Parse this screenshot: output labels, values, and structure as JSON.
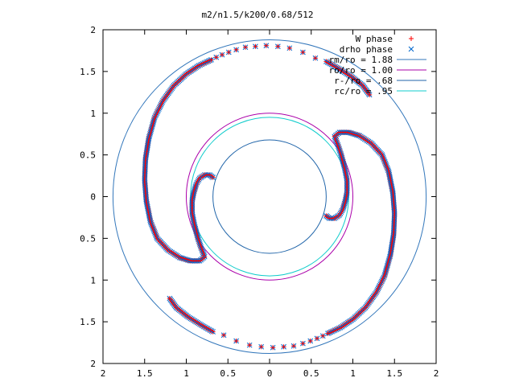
{
  "chart_data": {
    "type": "scatter",
    "title": "m2/n1.5/k200/0.68/512",
    "xlim": [
      -2,
      2
    ],
    "ylim": [
      -2,
      2
    ],
    "x_ticks": [
      -2,
      -1.5,
      -1,
      -0.5,
      0,
      0.5,
      1,
      1.5,
      2
    ],
    "y_ticks": [
      -2,
      -1.5,
      -1,
      -0.5,
      0,
      0.5,
      1,
      1.5,
      2
    ],
    "x_tick_labels": [
      "2",
      "1.5",
      "1",
      "0.5",
      "0",
      "0.5",
      "1",
      "1.5",
      "2"
    ],
    "y_tick_labels": [
      "2",
      "1.5",
      "1",
      "0.5",
      "0",
      "0.5",
      "1",
      "1.5",
      "2"
    ],
    "grid": false,
    "legend_position": "top-right",
    "legend": [
      {
        "label": "W phase",
        "kind": "plus",
        "color": "#ff0000"
      },
      {
        "label": "drho phase",
        "kind": "cross",
        "color": "#0066cc"
      },
      {
        "label": "rm/ro = 1.88",
        "kind": "line",
        "color": "#3377bb"
      },
      {
        "label": "ro/ro = 1.00",
        "kind": "line",
        "color": "#aa00aa"
      },
      {
        "label": "r-/ro = .68",
        "kind": "line",
        "color": "#2266aa"
      },
      {
        "label": "rc/ro = .95",
        "kind": "line",
        "color": "#11cccc"
      }
    ],
    "circles": [
      {
        "name": "rm/ro = 1.88",
        "radius": 1.88,
        "color": "#3377bb"
      },
      {
        "name": "ro/ro = 1.00",
        "radius": 1.0,
        "color": "#aa00aa"
      },
      {
        "name": "r-/ro = .68",
        "radius": 0.68,
        "color": "#2266aa"
      },
      {
        "name": "rc/ro = .95",
        "radius": 0.95,
        "color": "#11cccc"
      }
    ],
    "phase_series": [
      {
        "name": "W phase",
        "marker": "plus",
        "color": "#ff0000",
        "arms": [
          {
            "dense": true,
            "points": [
              [
                -0.68,
                0.23
              ],
              [
                -0.72,
                0.26
              ],
              [
                -0.78,
                0.26
              ],
              [
                -0.84,
                0.22
              ],
              [
                -0.88,
                0.15
              ],
              [
                -0.91,
                0.05
              ],
              [
                -0.93,
                -0.05
              ],
              [
                -0.93,
                -0.2
              ],
              [
                -0.9,
                -0.35
              ],
              [
                -0.86,
                -0.5
              ],
              [
                -0.82,
                -0.62
              ],
              [
                -0.78,
                -0.72
              ],
              [
                -0.84,
                -0.77
              ],
              [
                -0.95,
                -0.77
              ],
              [
                -1.08,
                -0.73
              ],
              [
                -1.22,
                -0.64
              ],
              [
                -1.35,
                -0.5
              ],
              [
                -1.43,
                -0.3
              ],
              [
                -1.48,
                -0.05
              ],
              [
                -1.5,
                0.2
              ],
              [
                -1.49,
                0.45
              ],
              [
                -1.45,
                0.7
              ],
              [
                -1.38,
                0.95
              ],
              [
                -1.28,
                1.15
              ],
              [
                -1.15,
                1.33
              ],
              [
                -1.0,
                1.47
              ],
              [
                -0.85,
                1.57
              ],
              [
                -0.7,
                1.64
              ]
            ]
          },
          {
            "dense": false,
            "points": [
              [
                -0.64,
                1.67
              ],
              [
                -0.57,
                1.7
              ],
              [
                -0.49,
                1.73
              ],
              [
                -0.4,
                1.76
              ],
              [
                -0.29,
                1.79
              ],
              [
                -0.17,
                1.8
              ],
              [
                -0.04,
                1.81
              ],
              [
                0.1,
                1.8
              ],
              [
                0.24,
                1.78
              ],
              [
                0.4,
                1.73
              ],
              [
                0.55,
                1.66
              ]
            ]
          },
          {
            "dense": true,
            "points": [
              [
                0.68,
                1.62
              ],
              [
                0.82,
                1.54
              ],
              [
                0.98,
                1.44
              ],
              [
                1.12,
                1.33
              ],
              [
                1.2,
                1.22
              ]
            ]
          },
          {
            "dense": true,
            "points": [
              [
                0.68,
                -0.23
              ],
              [
                0.72,
                -0.26
              ],
              [
                0.78,
                -0.26
              ],
              [
                0.84,
                -0.22
              ],
              [
                0.88,
                -0.15
              ],
              [
                0.91,
                -0.05
              ],
              [
                0.93,
                0.05
              ],
              [
                0.93,
                0.2
              ],
              [
                0.9,
                0.35
              ],
              [
                0.86,
                0.5
              ],
              [
                0.82,
                0.62
              ],
              [
                0.78,
                0.72
              ],
              [
                0.84,
                0.77
              ],
              [
                0.95,
                0.77
              ],
              [
                1.08,
                0.73
              ],
              [
                1.22,
                0.64
              ],
              [
                1.35,
                0.5
              ],
              [
                1.43,
                0.3
              ],
              [
                1.48,
                0.05
              ],
              [
                1.5,
                -0.2
              ],
              [
                1.49,
                -0.45
              ],
              [
                1.45,
                -0.7
              ],
              [
                1.38,
                -0.95
              ],
              [
                1.28,
                -1.15
              ],
              [
                1.15,
                -1.33
              ],
              [
                1.0,
                -1.47
              ],
              [
                0.85,
                -1.57
              ],
              [
                0.7,
                -1.64
              ]
            ]
          },
          {
            "dense": false,
            "points": [
              [
                0.64,
                -1.67
              ],
              [
                0.57,
                -1.7
              ],
              [
                0.49,
                -1.73
              ],
              [
                0.4,
                -1.76
              ],
              [
                0.29,
                -1.79
              ],
              [
                0.17,
                -1.8
              ],
              [
                0.04,
                -1.81
              ],
              [
                -0.1,
                -1.8
              ],
              [
                -0.24,
                -1.78
              ],
              [
                -0.4,
                -1.73
              ],
              [
                -0.55,
                -1.66
              ]
            ]
          },
          {
            "dense": true,
            "points": [
              [
                -0.68,
                -1.62
              ],
              [
                -0.82,
                -1.54
              ],
              [
                -0.98,
                -1.44
              ],
              [
                -1.12,
                -1.33
              ],
              [
                -1.2,
                -1.22
              ]
            ]
          }
        ]
      },
      {
        "name": "drho phase",
        "marker": "cross",
        "color": "#0066cc",
        "same_as": "W phase"
      }
    ]
  }
}
